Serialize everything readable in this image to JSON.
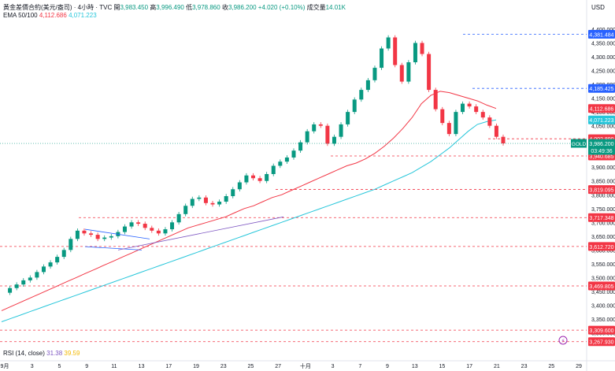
{
  "header": {
    "symbol": "黃金差價合約(美元/盎司) · 4小時 · TVC",
    "open_label": "開",
    "open": "3,983.450",
    "high_label": "高",
    "high": "3,996.490",
    "low_label": "低",
    "low": "3,978.860",
    "close_label": "收",
    "close": "3,986.200",
    "change": "+4.020 (+0.10%)",
    "volume_label": "成交量",
    "volume": "14.01K"
  },
  "ema": {
    "label": "EMA 50/100",
    "v1": "4,112.686",
    "v2": "4,071.223",
    "c1": "#f23645",
    "c2": "#26c6da"
  },
  "rsi": {
    "label": "RSI (14, close)",
    "v1": "31.38",
    "v2": "39.59"
  },
  "axis_currency": "USD",
  "colors": {
    "up": "#089981",
    "down": "#f23645",
    "blue": "#2962ff"
  },
  "chart_data": {
    "type": "candlestick",
    "title": "黃金差價合約(美元/盎司) · 4小時 · TVC",
    "ylim": [
      3250,
      4420
    ],
    "y_ticks": [
      "4,400.000",
      "4,350.000",
      "4,300.000",
      "4,250.000",
      "4,200.000",
      "4,150.000",
      "4,100.000",
      "4,050.000",
      "4,000.000",
      "3,950.000",
      "3,900.000",
      "3,850.000",
      "3,800.000",
      "3,750.000",
      "3,700.000",
      "3,650.000",
      "3,600.000",
      "3,550.000",
      "3,500.000",
      "3,450.000",
      "3,400.000",
      "3,350.000",
      "3,300.000"
    ],
    "x_ticks": [
      "9月",
      "3",
      "5",
      "9",
      "11",
      "13",
      "17",
      "19",
      "23",
      "25",
      "27",
      "十月",
      "3",
      "7",
      "9",
      "13",
      "15",
      "17",
      "21",
      "23",
      "25",
      "29"
    ],
    "price_levels": [
      {
        "label": "4,381.484",
        "value": 4381.484,
        "color": "#2962ff",
        "style": "dashed"
      },
      {
        "label": "4,185.425",
        "value": 4185.425,
        "color": "#2962ff",
        "style": "dashed"
      },
      {
        "label": "4,002.890",
        "value": 4002.89,
        "color": "#f23645",
        "style": "dashed"
      },
      {
        "label": "3,940.685",
        "value": 3940.685,
        "color": "#f23645",
        "style": "dashed"
      },
      {
        "label": "3,819.095",
        "value": 3819.095,
        "color": "#f23645",
        "style": "dashed"
      },
      {
        "label": "3,717.348",
        "value": 3717.348,
        "color": "#f23645",
        "style": "dashed"
      },
      {
        "label": "3,612.720",
        "value": 3612.72,
        "color": "#f23645",
        "style": "dashed"
      },
      {
        "label": "3,469.805",
        "value": 3469.805,
        "color": "#f23645",
        "style": "dashed"
      },
      {
        "label": "3,309.600",
        "value": 3309.6,
        "color": "#f23645",
        "style": "dashed"
      },
      {
        "label": "3,267.930",
        "value": 3267.93,
        "color": "#f23645",
        "style": "dashed"
      }
    ],
    "last_price": {
      "label": "3,986.200",
      "countdown": "03:49:36",
      "tag": "GOLD",
      "value": 3986.2
    },
    "ema_last": [
      {
        "label": "4,112.686",
        "value": 4112.686,
        "color": "#f23645"
      },
      {
        "label": "4,071.223",
        "value": 4071.223,
        "color": "#26c6da"
      }
    ],
    "close_path": [
      3445,
      3462,
      3475,
      3490,
      3500,
      3520,
      3540,
      3555,
      3575,
      3600,
      3640,
      3670,
      3660,
      3655,
      3640,
      3645,
      3650,
      3665,
      3685,
      3700,
      3695,
      3680,
      3670,
      3660,
      3675,
      3700,
      3730,
      3760,
      3785,
      3790,
      3770,
      3765,
      3775,
      3795,
      3820,
      3845,
      3870,
      3860,
      3850,
      3875,
      3905,
      3920,
      3935,
      3960,
      3990,
      4030,
      4055,
      4050,
      3985,
      4010,
      4055,
      4100,
      4145,
      4180,
      4215,
      4260,
      4330,
      4370,
      4270,
      4210,
      4280,
      4350,
      4310,
      4180,
      4110,
      4060,
      4020,
      4100,
      4130,
      4120,
      4100,
      4080,
      4050,
      4010,
      3986.2
    ],
    "ema50": [
      3380,
      3395,
      3410,
      3425,
      3440,
      3455,
      3470,
      3485,
      3500,
      3515,
      3530,
      3545,
      3560,
      3575,
      3590,
      3605,
      3620,
      3635,
      3650,
      3665,
      3680,
      3690,
      3700,
      3710,
      3720,
      3735,
      3750,
      3760,
      3775,
      3790,
      3800,
      3815,
      3830,
      3845,
      3860,
      3875,
      3890,
      3905,
      3915,
      3930,
      3950,
      3975,
      4005,
      4040,
      4080,
      4130,
      4160,
      4175,
      4170,
      4160,
      4150,
      4140,
      4125,
      4112.686
    ],
    "ema100": [
      3340,
      3352,
      3364,
      3376,
      3388,
      3400,
      3412,
      3424,
      3436,
      3448,
      3460,
      3472,
      3484,
      3496,
      3508,
      3520,
      3532,
      3544,
      3556,
      3568,
      3580,
      3592,
      3604,
      3616,
      3628,
      3640,
      3652,
      3664,
      3676,
      3688,
      3700,
      3712,
      3724,
      3736,
      3748,
      3760,
      3772,
      3784,
      3796,
      3808,
      3820,
      3835,
      3850,
      3865,
      3880,
      3900,
      3920,
      3945,
      3970,
      4000,
      4030,
      4055,
      4065,
      4071.223
    ]
  }
}
